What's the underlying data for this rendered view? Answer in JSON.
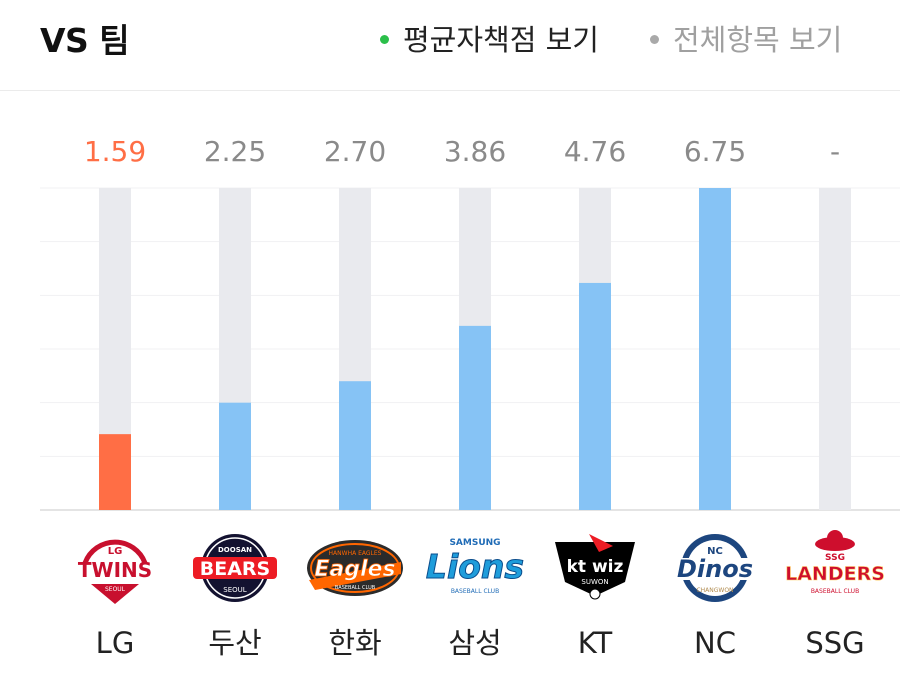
{
  "header": {
    "title": "VS 팀",
    "options": [
      {
        "label": "평균자책점 보기",
        "active": true,
        "dot_color": "#2bbf4a"
      },
      {
        "label": "전체항목 보기",
        "active": false,
        "dot_color": "#a9a9a9"
      }
    ]
  },
  "colors": {
    "highlight": "#ff6e45",
    "bar": "#86c3f5",
    "track": "#e9eaee",
    "value_text": "#8a8a8a",
    "grid": "#f1f1f3"
  },
  "chart_data": {
    "type": "bar",
    "categories": [
      "LG",
      "두산",
      "한화",
      "삼성",
      "KT",
      "NC",
      "SSG"
    ],
    "series": [
      {
        "values": [
          1.59,
          2.25,
          2.7,
          3.86,
          4.76,
          6.75,
          null
        ]
      }
    ],
    "value_labels": [
      "1.59",
      "2.25",
      "2.70",
      "3.86",
      "4.76",
      "6.75",
      "-"
    ],
    "highlight_index": 0,
    "ylim": [
      0,
      6.75
    ],
    "grid": true,
    "logo_icons": [
      "lg-twins-logo-icon",
      "doosan-bears-logo-icon",
      "hanwha-eagles-logo-icon",
      "samsung-lions-logo-icon",
      "kt-wiz-logo-icon",
      "nc-dinos-logo-icon",
      "ssg-landers-logo-icon"
    ],
    "logo_texts": [
      [
        "LG",
        "TWINS",
        "SEOUL"
      ],
      [
        "DOOSAN",
        "BEARS",
        "SEOUL"
      ],
      [
        "HANWHA EAGLES",
        "Eagles",
        "BASEBALL CLUB"
      ],
      [
        "SAMSUNG",
        "Lions",
        "BASEBALL CLUB"
      ],
      [
        "kt wiz",
        "SUWON"
      ],
      [
        "NC",
        "Dinos",
        "CHANGWON"
      ],
      [
        "SSG",
        "LANDERS",
        "BASEBALL CLUB"
      ]
    ]
  }
}
